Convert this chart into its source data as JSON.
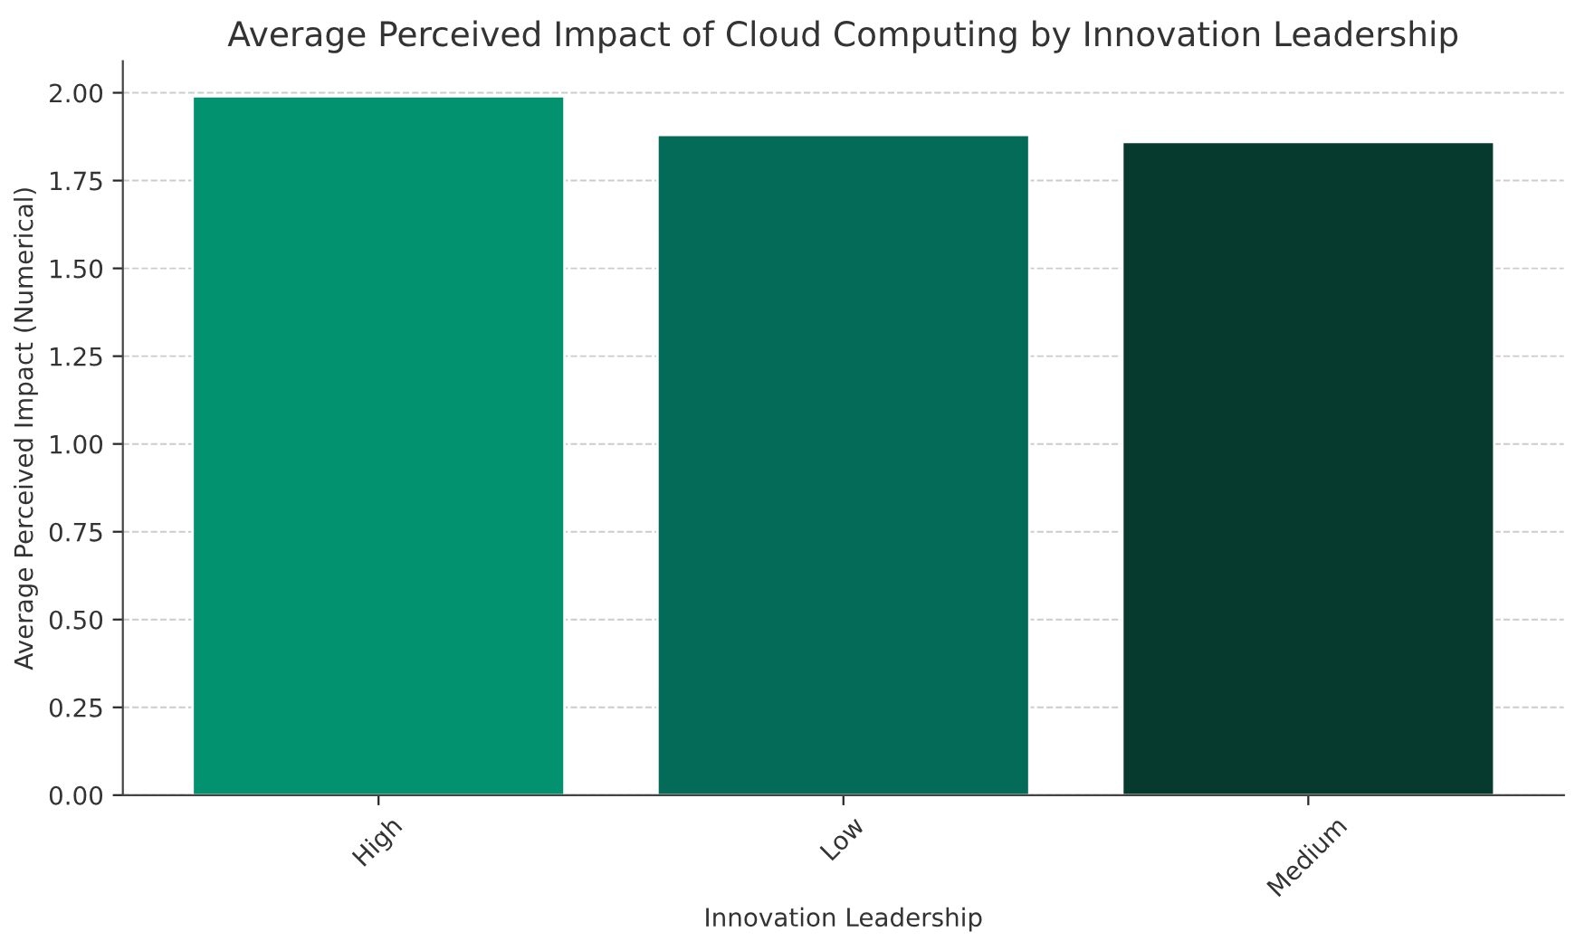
{
  "chart_data": {
    "type": "bar",
    "title": "Average Perceived Impact of Cloud Computing by Innovation Leadership",
    "xlabel": "Innovation Leadership",
    "ylabel": "Average Perceived Impact (Numerical)",
    "categories": [
      "High",
      "Low",
      "Medium"
    ],
    "values": [
      1.99,
      1.88,
      1.86
    ],
    "colors": [
      "#029270",
      "#036b57",
      "#063a2e"
    ],
    "ylim": [
      0,
      2.09
    ],
    "yticks": [
      {
        "value": 0,
        "label": "0.00"
      },
      {
        "value": 0.25,
        "label": "0.25"
      },
      {
        "value": 0.5,
        "label": "0.50"
      },
      {
        "value": 0.75,
        "label": "0.75"
      },
      {
        "value": 1,
        "label": "1.00"
      },
      {
        "value": 1.25,
        "label": "1.25"
      },
      {
        "value": 1.5,
        "label": "1.50"
      },
      {
        "value": 1.75,
        "label": "1.75"
      },
      {
        "value": 2,
        "label": "2.00"
      }
    ],
    "grid": "y"
  }
}
